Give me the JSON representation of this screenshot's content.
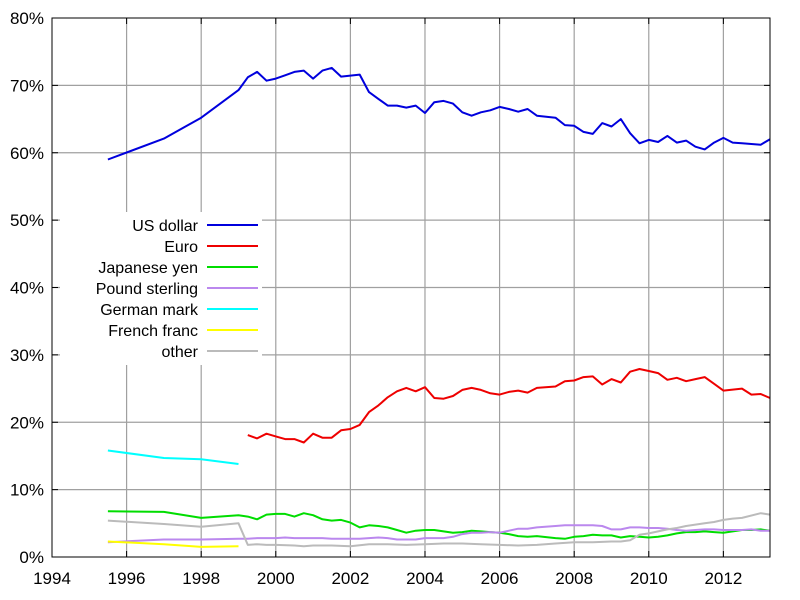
{
  "chart_data": {
    "type": "line",
    "title": "",
    "xlabel": "",
    "ylabel": "",
    "xlim": [
      1994,
      2013.25
    ],
    "ylim": [
      0,
      80
    ],
    "grid": true,
    "legend_placement": "middle-left",
    "x_ticks": [
      {
        "value": 1994,
        "label": "1994"
      },
      {
        "value": 1996,
        "label": "1996"
      },
      {
        "value": 1998,
        "label": "1998"
      },
      {
        "value": 2000,
        "label": "2000"
      },
      {
        "value": 2002,
        "label": "2002"
      },
      {
        "value": 2004,
        "label": "2004"
      },
      {
        "value": 2006,
        "label": "2006"
      },
      {
        "value": 2008,
        "label": "2008"
      },
      {
        "value": 2010,
        "label": "2010"
      },
      {
        "value": 2012,
        "label": "2012"
      }
    ],
    "y_ticks": [
      {
        "value": 0,
        "label": "0%"
      },
      {
        "value": 10,
        "label": "10%"
      },
      {
        "value": 20,
        "label": "20%"
      },
      {
        "value": 30,
        "label": "30%"
      },
      {
        "value": 40,
        "label": "40%"
      },
      {
        "value": 50,
        "label": "50%"
      },
      {
        "value": 60,
        "label": "60%"
      },
      {
        "value": 70,
        "label": "70%"
      },
      {
        "value": 80,
        "label": "80%"
      }
    ],
    "series": [
      {
        "name": "US dollar",
        "color": "#0000dd",
        "points": [
          [
            1995.5,
            59.0
          ],
          [
            1997,
            62.1
          ],
          [
            1998,
            65.2
          ],
          [
            1999,
            69.3
          ],
          [
            1999.25,
            71.2
          ],
          [
            1999.5,
            72.0
          ],
          [
            1999.75,
            70.7
          ],
          [
            2000,
            71.0
          ],
          [
            2000.25,
            71.5
          ],
          [
            2000.5,
            72.0
          ],
          [
            2000.75,
            72.2
          ],
          [
            2001,
            71.0
          ],
          [
            2001.25,
            72.2
          ],
          [
            2001.5,
            72.6
          ],
          [
            2001.75,
            71.3
          ],
          [
            2002.25,
            71.6
          ],
          [
            2002.5,
            69.0
          ],
          [
            2002.75,
            68.0
          ],
          [
            2003,
            67.0
          ],
          [
            2003.25,
            67.0
          ],
          [
            2003.5,
            66.7
          ],
          [
            2003.75,
            67.0
          ],
          [
            2004,
            65.9
          ],
          [
            2004.25,
            67.5
          ],
          [
            2004.5,
            67.7
          ],
          [
            2004.75,
            67.3
          ],
          [
            2005,
            66.0
          ],
          [
            2005.25,
            65.5
          ],
          [
            2005.5,
            66.0
          ],
          [
            2005.75,
            66.3
          ],
          [
            2006,
            66.8
          ],
          [
            2006.25,
            66.5
          ],
          [
            2006.5,
            66.1
          ],
          [
            2006.75,
            66.5
          ],
          [
            2007,
            65.5
          ],
          [
            2007.5,
            65.2
          ],
          [
            2007.75,
            64.1
          ],
          [
            2008,
            64.0
          ],
          [
            2008.25,
            63.1
          ],
          [
            2008.5,
            62.8
          ],
          [
            2008.75,
            64.4
          ],
          [
            2009,
            63.9
          ],
          [
            2009.25,
            65.0
          ],
          [
            2009.5,
            62.9
          ],
          [
            2009.75,
            61.4
          ],
          [
            2010,
            61.9
          ],
          [
            2010.25,
            61.6
          ],
          [
            2010.5,
            62.5
          ],
          [
            2010.75,
            61.5
          ],
          [
            2011,
            61.8
          ],
          [
            2011.25,
            60.9
          ],
          [
            2011.5,
            60.5
          ],
          [
            2011.75,
            61.5
          ],
          [
            2012,
            62.2
          ],
          [
            2012.25,
            61.5
          ],
          [
            2012.5,
            61.4
          ],
          [
            2013,
            61.2
          ],
          [
            2013.25,
            62.0
          ]
        ]
      },
      {
        "name": "Euro",
        "color": "#ee0000",
        "points": [
          [
            1999.25,
            18.1
          ],
          [
            1999.5,
            17.6
          ],
          [
            1999.75,
            18.3
          ],
          [
            2000,
            17.9
          ],
          [
            2000.25,
            17.5
          ],
          [
            2000.5,
            17.5
          ],
          [
            2000.75,
            17.0
          ],
          [
            2001,
            18.3
          ],
          [
            2001.25,
            17.7
          ],
          [
            2001.5,
            17.7
          ],
          [
            2001.75,
            18.8
          ],
          [
            2002,
            19.0
          ],
          [
            2002.25,
            19.6
          ],
          [
            2002.5,
            21.5
          ],
          [
            2002.75,
            22.5
          ],
          [
            2003,
            23.7
          ],
          [
            2003.25,
            24.6
          ],
          [
            2003.5,
            25.1
          ],
          [
            2003.75,
            24.6
          ],
          [
            2004,
            25.2
          ],
          [
            2004.25,
            23.6
          ],
          [
            2004.5,
            23.5
          ],
          [
            2004.75,
            23.9
          ],
          [
            2005,
            24.8
          ],
          [
            2005.25,
            25.1
          ],
          [
            2005.5,
            24.8
          ],
          [
            2005.75,
            24.3
          ],
          [
            2006,
            24.1
          ],
          [
            2006.25,
            24.5
          ],
          [
            2006.5,
            24.7
          ],
          [
            2006.75,
            24.4
          ],
          [
            2007,
            25.1
          ],
          [
            2007.5,
            25.3
          ],
          [
            2007.75,
            26.1
          ],
          [
            2008,
            26.2
          ],
          [
            2008.25,
            26.7
          ],
          [
            2008.5,
            26.8
          ],
          [
            2008.75,
            25.6
          ],
          [
            2009,
            26.4
          ],
          [
            2009.25,
            25.9
          ],
          [
            2009.5,
            27.5
          ],
          [
            2009.75,
            27.9
          ],
          [
            2010,
            27.6
          ],
          [
            2010.25,
            27.3
          ],
          [
            2010.5,
            26.3
          ],
          [
            2010.75,
            26.6
          ],
          [
            2011,
            26.1
          ],
          [
            2011.25,
            26.4
          ],
          [
            2011.5,
            26.7
          ],
          [
            2011.75,
            25.7
          ],
          [
            2012,
            24.7
          ],
          [
            2012.5,
            25.0
          ],
          [
            2012.75,
            24.1
          ],
          [
            2013,
            24.2
          ],
          [
            2013.25,
            23.6
          ]
        ]
      },
      {
        "name": "Japanese yen",
        "color": "#00dd00",
        "points": [
          [
            1995.5,
            6.8
          ],
          [
            1997,
            6.7
          ],
          [
            1998,
            5.8
          ],
          [
            1999,
            6.2
          ],
          [
            1999.25,
            6.0
          ],
          [
            1999.5,
            5.6
          ],
          [
            1999.75,
            6.3
          ],
          [
            2000,
            6.4
          ],
          [
            2000.25,
            6.4
          ],
          [
            2000.5,
            6.0
          ],
          [
            2000.75,
            6.5
          ],
          [
            2001,
            6.2
          ],
          [
            2001.25,
            5.6
          ],
          [
            2001.5,
            5.4
          ],
          [
            2001.75,
            5.5
          ],
          [
            2002,
            5.1
          ],
          [
            2002.25,
            4.4
          ],
          [
            2002.5,
            4.7
          ],
          [
            2002.75,
            4.6
          ],
          [
            2003,
            4.4
          ],
          [
            2003.25,
            4.0
          ],
          [
            2003.5,
            3.6
          ],
          [
            2003.75,
            3.9
          ],
          [
            2004,
            4.0
          ],
          [
            2004.25,
            4.0
          ],
          [
            2004.5,
            3.8
          ],
          [
            2004.75,
            3.6
          ],
          [
            2005,
            3.7
          ],
          [
            2005.25,
            3.9
          ],
          [
            2005.5,
            3.8
          ],
          [
            2005.75,
            3.7
          ],
          [
            2006,
            3.6
          ],
          [
            2006.25,
            3.4
          ],
          [
            2006.5,
            3.1
          ],
          [
            2006.75,
            3.0
          ],
          [
            2007,
            3.1
          ],
          [
            2007.5,
            2.8
          ],
          [
            2007.75,
            2.7
          ],
          [
            2008,
            3.0
          ],
          [
            2008.25,
            3.1
          ],
          [
            2008.5,
            3.3
          ],
          [
            2008.75,
            3.2
          ],
          [
            2009,
            3.2
          ],
          [
            2009.25,
            2.9
          ],
          [
            2009.5,
            3.1
          ],
          [
            2009.75,
            3.0
          ],
          [
            2010,
            2.9
          ],
          [
            2010.25,
            3.0
          ],
          [
            2010.5,
            3.2
          ],
          [
            2010.75,
            3.5
          ],
          [
            2011,
            3.7
          ],
          [
            2011.25,
            3.7
          ],
          [
            2011.5,
            3.8
          ],
          [
            2011.75,
            3.7
          ],
          [
            2012,
            3.6
          ],
          [
            2012.5,
            4.0
          ],
          [
            2012.75,
            4.0
          ],
          [
            2013,
            4.1
          ],
          [
            2013.25,
            3.9
          ]
        ]
      },
      {
        "name": "Pound sterling",
        "color": "#bb88ee",
        "points": [
          [
            1995.5,
            2.2
          ],
          [
            1997,
            2.6
          ],
          [
            1998,
            2.6
          ],
          [
            1999,
            2.7
          ],
          [
            1999.25,
            2.7
          ],
          [
            1999.5,
            2.8
          ],
          [
            1999.75,
            2.8
          ],
          [
            2000,
            2.8
          ],
          [
            2000.25,
            2.9
          ],
          [
            2000.5,
            2.8
          ],
          [
            2000.75,
            2.8
          ],
          [
            2001,
            2.8
          ],
          [
            2001.25,
            2.8
          ],
          [
            2001.5,
            2.7
          ],
          [
            2001.75,
            2.7
          ],
          [
            2002,
            2.7
          ],
          [
            2002.25,
            2.7
          ],
          [
            2002.5,
            2.8
          ],
          [
            2002.75,
            2.9
          ],
          [
            2003,
            2.8
          ],
          [
            2003.25,
            2.6
          ],
          [
            2003.5,
            2.6
          ],
          [
            2003.75,
            2.6
          ],
          [
            2004,
            2.8
          ],
          [
            2004.25,
            2.8
          ],
          [
            2004.5,
            2.8
          ],
          [
            2004.75,
            3.0
          ],
          [
            2005,
            3.4
          ],
          [
            2005.25,
            3.6
          ],
          [
            2005.5,
            3.6
          ],
          [
            2005.75,
            3.7
          ],
          [
            2006,
            3.6
          ],
          [
            2006.25,
            3.9
          ],
          [
            2006.5,
            4.2
          ],
          [
            2006.75,
            4.2
          ],
          [
            2007,
            4.4
          ],
          [
            2007.5,
            4.6
          ],
          [
            2007.75,
            4.7
          ],
          [
            2008,
            4.7
          ],
          [
            2008.25,
            4.7
          ],
          [
            2008.5,
            4.7
          ],
          [
            2008.75,
            4.6
          ],
          [
            2009,
            4.1
          ],
          [
            2009.25,
            4.1
          ],
          [
            2009.5,
            4.4
          ],
          [
            2009.75,
            4.4
          ],
          [
            2010,
            4.3
          ],
          [
            2010.25,
            4.3
          ],
          [
            2010.5,
            4.2
          ],
          [
            2010.75,
            4.0
          ],
          [
            2011,
            3.9
          ],
          [
            2011.25,
            4.0
          ],
          [
            2011.5,
            4.1
          ],
          [
            2011.75,
            4.1
          ],
          [
            2012,
            4.0
          ],
          [
            2012.5,
            4.0
          ],
          [
            2012.75,
            4.1
          ],
          [
            2013,
            3.9
          ],
          [
            2013.25,
            3.9
          ]
        ]
      },
      {
        "name": "German mark",
        "color": "#00ffff",
        "points": [
          [
            1995.5,
            15.8
          ],
          [
            1997,
            14.7
          ],
          [
            1998,
            14.5
          ],
          [
            1999,
            13.8
          ]
        ]
      },
      {
        "name": "French franc",
        "color": "#ffff00",
        "points": [
          [
            1995.5,
            2.3
          ],
          [
            1997,
            1.9
          ],
          [
            1998,
            1.5
          ],
          [
            1999,
            1.6
          ]
        ]
      },
      {
        "name": "other",
        "color": "#bbbbbb",
        "points": [
          [
            1995.5,
            5.4
          ],
          [
            1997,
            4.9
          ],
          [
            1998,
            4.5
          ],
          [
            1999,
            5.0
          ],
          [
            1999.25,
            1.8
          ],
          [
            1999.5,
            1.9
          ],
          [
            1999.75,
            1.8
          ],
          [
            2000,
            1.8
          ],
          [
            2000.5,
            1.7
          ],
          [
            2000.75,
            1.6
          ],
          [
            2001,
            1.7
          ],
          [
            2001.5,
            1.7
          ],
          [
            2002,
            1.6
          ],
          [
            2002.5,
            1.9
          ],
          [
            2003,
            1.9
          ],
          [
            2003.5,
            1.8
          ],
          [
            2004,
            1.9
          ],
          [
            2004.5,
            2.0
          ],
          [
            2005,
            2.0
          ],
          [
            2005.5,
            1.9
          ],
          [
            2006,
            1.8
          ],
          [
            2006.5,
            1.7
          ],
          [
            2007,
            1.8
          ],
          [
            2007.5,
            2.0
          ],
          [
            2008,
            2.2
          ],
          [
            2008.5,
            2.2
          ],
          [
            2009,
            2.3
          ],
          [
            2009.25,
            2.3
          ],
          [
            2009.5,
            2.5
          ],
          [
            2009.75,
            3.3
          ],
          [
            2010,
            3.5
          ],
          [
            2010.25,
            3.8
          ],
          [
            2010.5,
            4.1
          ],
          [
            2010.75,
            4.3
          ],
          [
            2011,
            4.6
          ],
          [
            2011.5,
            5.0
          ],
          [
            2011.75,
            5.2
          ],
          [
            2012,
            5.5
          ],
          [
            2012.25,
            5.7
          ],
          [
            2012.5,
            5.8
          ],
          [
            2013,
            6.5
          ],
          [
            2013.25,
            6.3
          ]
        ]
      }
    ]
  }
}
